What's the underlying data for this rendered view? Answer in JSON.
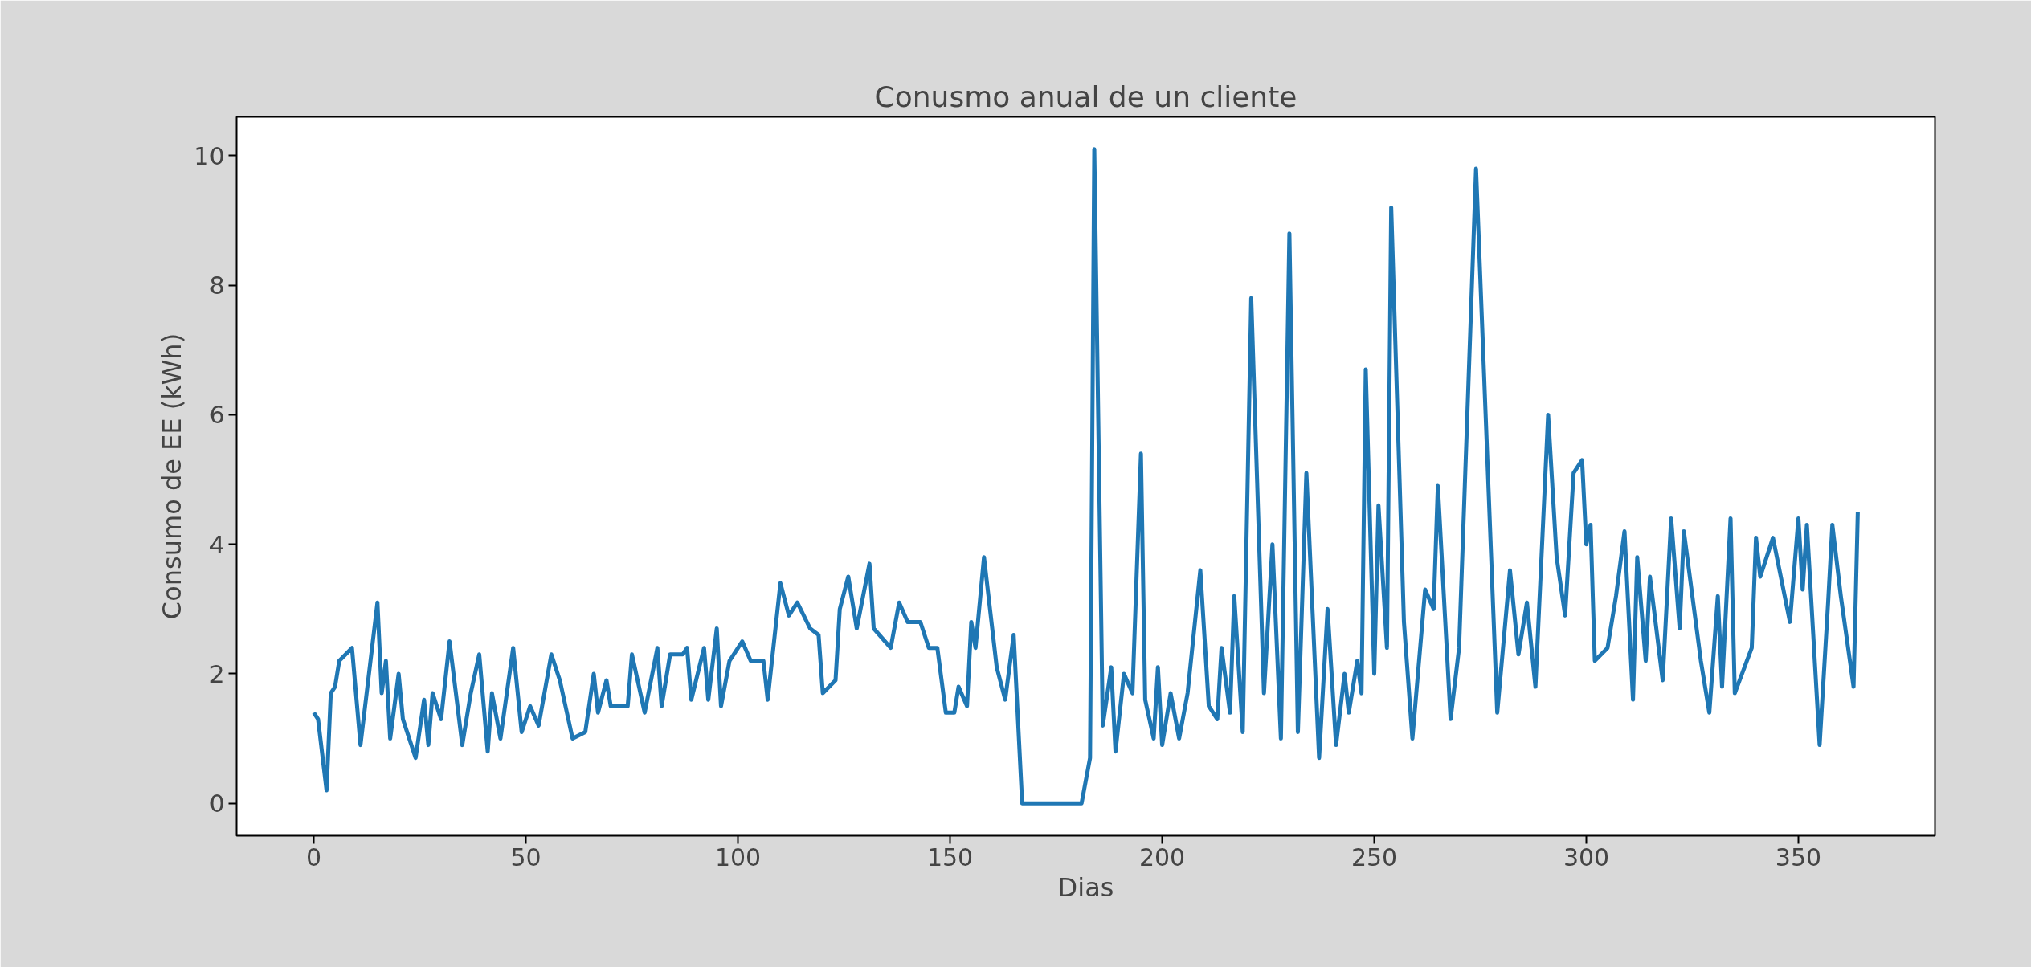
{
  "chart_data": {
    "type": "line",
    "title": "Conusmo anual de un cliente",
    "xlabel": "Dias",
    "ylabel": "Consumo de EE (kWh)",
    "xlim": [
      -18.2,
      382.2
    ],
    "ylim": [
      -0.5,
      10.6
    ],
    "xticks": [
      0,
      50,
      100,
      150,
      200,
      250,
      300,
      350
    ],
    "yticks": [
      0,
      2,
      4,
      6,
      8,
      10
    ],
    "series": [
      {
        "color": "#1f77b4",
        "x": [
          0,
          1,
          3,
          4,
          5,
          6,
          9,
          11,
          15,
          16,
          17,
          18,
          20,
          21,
          24,
          26,
          27,
          28,
          30,
          32,
          35,
          37,
          39,
          41,
          42,
          44,
          47,
          49,
          51,
          53,
          56,
          58,
          61,
          64,
          66,
          67,
          69,
          70,
          74,
          75,
          78,
          81,
          82,
          84,
          87,
          88,
          89,
          92,
          93,
          95,
          96,
          98,
          101,
          103,
          106,
          107,
          110,
          112,
          114,
          117,
          119,
          120,
          123,
          124,
          126,
          128,
          131,
          132,
          136,
          138,
          140,
          143,
          145,
          147,
          149,
          151,
          152,
          154,
          155,
          156,
          158,
          161,
          163,
          165,
          167,
          181,
          183,
          184,
          186,
          188,
          189,
          191,
          193,
          195,
          196,
          198,
          199,
          200,
          202,
          204,
          206,
          209,
          211,
          213,
          214,
          216,
          217,
          219,
          221,
          224,
          226,
          228,
          230,
          232,
          234,
          237,
          239,
          241,
          243,
          244,
          246,
          247,
          248,
          250,
          251,
          253,
          254,
          257,
          259,
          262,
          264,
          265,
          268,
          270,
          274,
          279,
          282,
          284,
          286,
          288,
          291,
          293,
          295,
          297,
          299,
          300,
          301,
          302,
          305,
          307,
          309,
          311,
          312,
          314,
          315,
          318,
          320,
          322,
          323,
          327,
          329,
          331,
          332,
          334,
          335,
          339,
          340,
          341,
          344,
          348,
          350,
          351,
          352,
          355,
          357,
          358,
          360,
          363,
          364
        ],
        "values": [
          1.4,
          1.3,
          0.2,
          1.7,
          1.8,
          2.2,
          2.4,
          0.9,
          3.1,
          1.7,
          2.2,
          1.0,
          2.0,
          1.3,
          0.7,
          1.6,
          0.9,
          1.7,
          1.3,
          2.5,
          0.9,
          1.7,
          2.3,
          0.8,
          1.7,
          1.0,
          2.4,
          1.1,
          1.5,
          1.2,
          2.3,
          1.9,
          1.0,
          1.1,
          2.0,
          1.4,
          1.9,
          1.5,
          1.5,
          2.3,
          1.4,
          2.4,
          1.5,
          2.3,
          2.3,
          2.4,
          1.6,
          2.4,
          1.6,
          2.7,
          1.5,
          2.2,
          2.5,
          2.2,
          2.2,
          1.6,
          3.4,
          2.9,
          3.1,
          2.7,
          2.6,
          1.7,
          1.9,
          3.0,
          3.5,
          2.7,
          3.7,
          2.7,
          2.4,
          3.1,
          2.8,
          2.8,
          2.4,
          2.4,
          1.4,
          1.4,
          1.8,
          1.5,
          2.8,
          2.4,
          3.8,
          2.1,
          1.6,
          2.6,
          0,
          0,
          0.7,
          10.1,
          1.2,
          2.1,
          0.8,
          2.0,
          1.7,
          5.4,
          1.6,
          1.0,
          2.1,
          0.9,
          1.7,
          1.0,
          1.7,
          3.6,
          1.5,
          1.3,
          2.4,
          1.4,
          3.2,
          1.1,
          7.8,
          1.7,
          4.0,
          1.0,
          8.8,
          1.1,
          5.1,
          0.7,
          3.0,
          0.9,
          2.0,
          1.4,
          2.2,
          1.7,
          6.7,
          2.0,
          4.6,
          2.4,
          9.2,
          2.8,
          1.0,
          3.3,
          3.0,
          4.9,
          1.3,
          2.4,
          9.8,
          1.4,
          3.6,
          2.3,
          3.1,
          1.8,
          6.0,
          3.8,
          2.9,
          5.1,
          5.3,
          4.0,
          4.3,
          2.2,
          2.4,
          3.2,
          4.2,
          1.6,
          3.8,
          2.2,
          3.5,
          1.9,
          4.4,
          2.7,
          4.2,
          2.2,
          1.4,
          3.2,
          1.8,
          4.4,
          1.7,
          2.4,
          4.1,
          3.5,
          4.1,
          2.8,
          4.4,
          3.3,
          4.3,
          0.9,
          3.1,
          4.3,
          3.2,
          1.8,
          4.5
        ]
      }
    ]
  }
}
